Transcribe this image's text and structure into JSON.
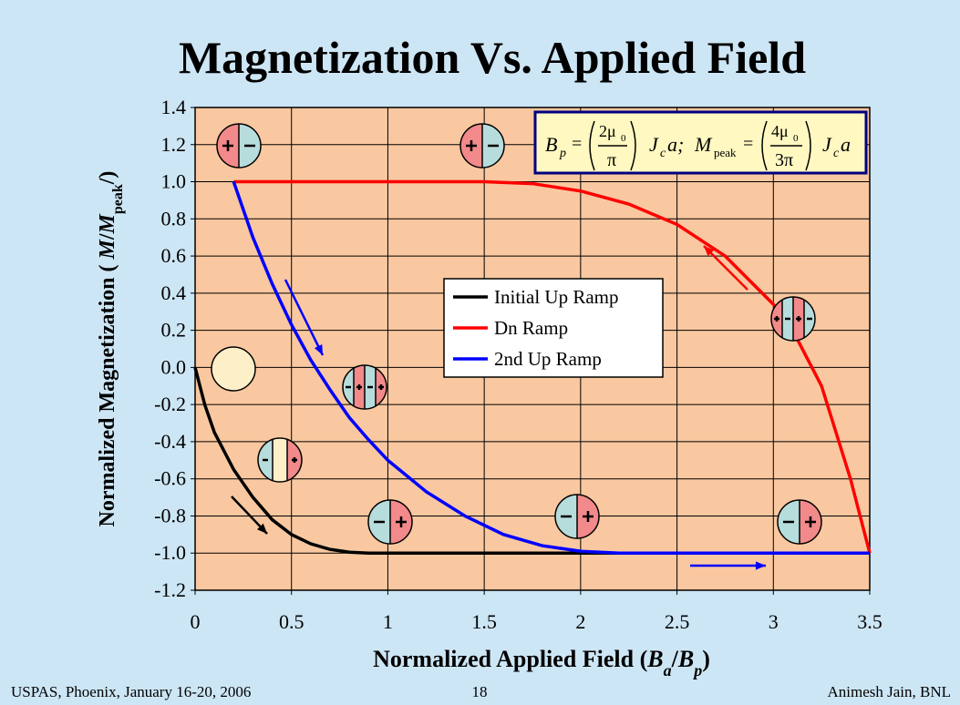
{
  "chart_data": {
    "type": "line",
    "title": "Magnetization Vs. Applied Field",
    "xlabel": {
      "parts": [
        "Normalized Applied Field (",
        "B",
        "a",
        "/",
        "B",
        "p",
        ")"
      ]
    },
    "ylabel": {
      "parts": [
        "Normalized Magnetization ( ",
        "M",
        "/",
        "M",
        "peak",
        "/)"
      ]
    },
    "xlim": [
      0,
      3.5
    ],
    "ylim": [
      -1.2,
      1.4
    ],
    "xticks": [
      0,
      0.5,
      1,
      1.5,
      2,
      2.5,
      3,
      3.5
    ],
    "yticks": [
      -1.2,
      {
        "value": -1,
        "label": "-1.0"
      },
      -0.8,
      -0.6,
      -0.4,
      -0.2,
      {
        "value": 0,
        "label": "0.0"
      },
      0.2,
      0.4,
      0.6,
      0.8,
      {
        "value": 1,
        "label": "1.0"
      },
      1.2,
      1.4
    ],
    "grid": true,
    "series": [
      {
        "name": "Initial Up Ramp",
        "color": "#000000",
        "x": [
          0,
          0.05,
          0.1,
          0.2,
          0.3,
          0.4,
          0.5,
          0.6,
          0.7,
          0.8,
          0.9,
          2.0,
          3.5
        ],
        "values": [
          0,
          -0.2,
          -0.35,
          -0.55,
          -0.7,
          -0.82,
          -0.9,
          -0.95,
          -0.98,
          -0.995,
          -1.0,
          -1.0,
          -1.0
        ]
      },
      {
        "name": "Dn Ramp",
        "color": "#ff0000",
        "x": [
          0.2,
          1.5,
          1.75,
          2.0,
          2.25,
          2.5,
          2.75,
          3.0,
          3.1,
          3.25,
          3.4,
          3.5
        ],
        "values": [
          1.0,
          1.0,
          0.99,
          0.95,
          0.88,
          0.77,
          0.6,
          0.34,
          0.2,
          -0.1,
          -0.6,
          -1.0
        ]
      },
      {
        "name": "2nd Up Ramp",
        "color": "#0000ff",
        "x": [
          0.2,
          0.3,
          0.4,
          0.5,
          0.6,
          0.7,
          0.8,
          0.9,
          1.0,
          1.2,
          1.4,
          1.6,
          1.8,
          2.0,
          2.2,
          3.5
        ],
        "values": [
          1.0,
          0.7,
          0.45,
          0.23,
          0.04,
          -0.12,
          -0.27,
          -0.39,
          -0.5,
          -0.67,
          -0.8,
          -0.9,
          -0.96,
          -0.99,
          -1.0,
          -1.0
        ]
      }
    ],
    "formula": [
      "B",
      "p",
      "=",
      "2μ",
      "0",
      "π",
      "J",
      "c",
      "a;",
      "M",
      "peak",
      "=",
      "4μ",
      "0",
      "3π",
      "J",
      "c",
      "a"
    ]
  },
  "footer": {
    "left": "USPAS, Phoenix, January 16-20, 2006",
    "center": "18",
    "right": "Animesh Jain, BNL"
  }
}
